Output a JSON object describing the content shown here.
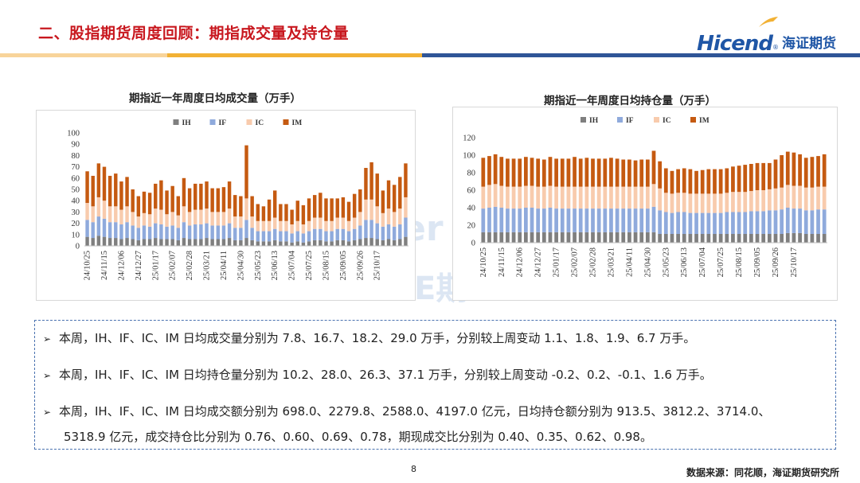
{
  "page": {
    "title": "二、股指期货周度回顾：期指成交量及持仓量",
    "page_number": "8",
    "source": "数据来源：同花顺，海证期货研究所",
    "logo": {
      "latin": "Hicend",
      "reg": "®",
      "chinese": "海证期货"
    }
  },
  "colors": {
    "IH": "#7f7f7f",
    "IF": "#8faadc",
    "IC": "#f8cbad",
    "IM": "#c55a11",
    "title_red": "#c8171e",
    "accent_blue": "#1f56a6",
    "bar_gold": "#f2b134",
    "bar_blue": "#2f5597"
  },
  "notes": [
    "本周，IH、IF、IC、IM 日均成交量分别为 7.8、16.7、18.2、29.0 万手，分别较上周变动 1.1、1.8、1.9、6.7 万手。",
    "本周，IH、IF、IC、IM 日均持仓量分别为 10.2、28.0、26.3、37.1 万手，分别较上周变动 -0.2、0.2、-0.1、1.6 万手。",
    "本周，IH、IF、IC、IM 日均成交额分别为 698.0、2279.8、2588.0、4197.0 亿元，日均持仓额分别为 913.5、3812.2、3714.0、",
    "5318.9 亿元，成交持仓比分别为 0.76、0.60、0.69、0.78，期现成交比分别为 0.40、0.35、0.62、0.98。"
  ],
  "chart_data": [
    {
      "type": "bar",
      "stacked": true,
      "title": "期指近一年周度日均成交量（万手）",
      "ylim": [
        0,
        100
      ],
      "yticks": [
        0,
        10,
        20,
        30,
        40,
        50,
        60,
        70,
        80,
        90,
        100
      ],
      "legend_position": "top",
      "tick_labels": [
        "24/10/25",
        "24/11/15",
        "24/12/06",
        "24/12/27",
        "25/01/17",
        "25/02/07",
        "25/02/28",
        "25/03/21",
        "25/04/11",
        "25/04/30",
        "25/05/23",
        "25/06/13",
        "25/07/04",
        "25/07/25",
        "25/08/15",
        "25/09/05",
        "25/09/26",
        "25/10/17"
      ],
      "tick_every": 3,
      "series": [
        {
          "name": "IH",
          "values": [
            8,
            7,
            9,
            8,
            7,
            7,
            6,
            7,
            6,
            5,
            6,
            6,
            7,
            6,
            6,
            6,
            5,
            7,
            6,
            6,
            6,
            7,
            6,
            6,
            6,
            7,
            5,
            5,
            7,
            5,
            4,
            4,
            4,
            5,
            4,
            4,
            3,
            4,
            3,
            4,
            5,
            5,
            4,
            4,
            5,
            5,
            4,
            5,
            6,
            7,
            7,
            6,
            5,
            6,
            5,
            6,
            8
          ]
        },
        {
          "name": "IF",
          "values": [
            15,
            14,
            17,
            16,
            14,
            14,
            13,
            14,
            12,
            11,
            12,
            11,
            13,
            13,
            11,
            12,
            11,
            14,
            12,
            13,
            13,
            13,
            12,
            12,
            12,
            13,
            11,
            11,
            16,
            11,
            9,
            9,
            9,
            10,
            9,
            9,
            8,
            9,
            8,
            9,
            10,
            10,
            9,
            9,
            10,
            10,
            9,
            10,
            12,
            16,
            16,
            14,
            12,
            13,
            12,
            13,
            17
          ]
        },
        {
          "name": "IC",
          "values": [
            15,
            14,
            17,
            16,
            14,
            14,
            13,
            14,
            12,
            10,
            11,
            11,
            13,
            13,
            11,
            12,
            11,
            14,
            12,
            13,
            13,
            13,
            12,
            12,
            12,
            13,
            10,
            10,
            19,
            10,
            9,
            9,
            9,
            10,
            9,
            9,
            8,
            9,
            8,
            9,
            10,
            10,
            9,
            9,
            10,
            10,
            9,
            10,
            12,
            18,
            18,
            15,
            12,
            14,
            13,
            14,
            18
          ]
        },
        {
          "name": "IM",
          "values": [
            28,
            27,
            30,
            30,
            27,
            29,
            25,
            26,
            20,
            18,
            19,
            19,
            22,
            26,
            21,
            23,
            17,
            25,
            21,
            23,
            23,
            24,
            21,
            21,
            22,
            24,
            19,
            18,
            47,
            18,
            15,
            13,
            19,
            24,
            15,
            15,
            13,
            18,
            17,
            20,
            20,
            22,
            20,
            20,
            17,
            18,
            17,
            21,
            20,
            28,
            33,
            29,
            20,
            25,
            24,
            28,
            30
          ]
        }
      ]
    },
    {
      "type": "bar",
      "stacked": true,
      "title": "期指近一年周度日均持仓量（万手）",
      "ylim": [
        0,
        120
      ],
      "yticks": [
        0,
        20,
        40,
        60,
        80,
        100,
        120
      ],
      "legend_position": "top",
      "tick_labels": [
        "24/10/25",
        "24/11/15",
        "24/12/06",
        "24/12/27",
        "25/01/17",
        "25/02/07",
        "25/02/28",
        "25/03/21",
        "25/04/11",
        "25/04/30",
        "25/05/23",
        "25/06/13",
        "25/07/04",
        "25/07/25",
        "25/08/15",
        "25/09/05",
        "25/09/26",
        "25/10/17"
      ],
      "tick_every": 3,
      "series": [
        {
          "name": "IH",
          "values": [
            12,
            12,
            12,
            12,
            12,
            12,
            12,
            12,
            12,
            12,
            12,
            12,
            12,
            12,
            12,
            12,
            12,
            12,
            12,
            12,
            12,
            12,
            12,
            12,
            12,
            12,
            12,
            12,
            12,
            10,
            10,
            10,
            10,
            10,
            10,
            10,
            10,
            10,
            10,
            10,
            10,
            10,
            10,
            10,
            10,
            10,
            10,
            10,
            10,
            10,
            11,
            11,
            11,
            10,
            10,
            10,
            10
          ]
        },
        {
          "name": "IF",
          "values": [
            27,
            28,
            29,
            28,
            27,
            27,
            27,
            28,
            28,
            27,
            27,
            28,
            27,
            27,
            27,
            27,
            27,
            27,
            27,
            27,
            27,
            27,
            27,
            27,
            27,
            27,
            27,
            27,
            29,
            27,
            25,
            24,
            25,
            25,
            24,
            24,
            24,
            24,
            24,
            24,
            25,
            25,
            25,
            25,
            26,
            26,
            26,
            27,
            27,
            28,
            29,
            28,
            28,
            27,
            27,
            28,
            28
          ]
        },
        {
          "name": "IC",
          "values": [
            25,
            26,
            26,
            25,
            25,
            25,
            25,
            25,
            25,
            25,
            25,
            25,
            25,
            25,
            25,
            25,
            25,
            25,
            25,
            25,
            25,
            25,
            25,
            25,
            25,
            25,
            25,
            25,
            26,
            25,
            22,
            22,
            22,
            22,
            22,
            22,
            22,
            22,
            22,
            22,
            22,
            23,
            23,
            23,
            23,
            24,
            24,
            24,
            25,
            25,
            26,
            26,
            26,
            26,
            26,
            26,
            26
          ]
        },
        {
          "name": "IM",
          "values": [
            33,
            33,
            34,
            33,
            32,
            32,
            32,
            33,
            32,
            32,
            31,
            33,
            32,
            32,
            32,
            34,
            32,
            33,
            32,
            32,
            32,
            33,
            32,
            31,
            31,
            30,
            31,
            31,
            38,
            31,
            28,
            26,
            27,
            28,
            28,
            26,
            27,
            28,
            28,
            28,
            28,
            29,
            30,
            31,
            31,
            31,
            31,
            30,
            33,
            37,
            38,
            38,
            36,
            34,
            35,
            35,
            37
          ]
        }
      ]
    }
  ]
}
